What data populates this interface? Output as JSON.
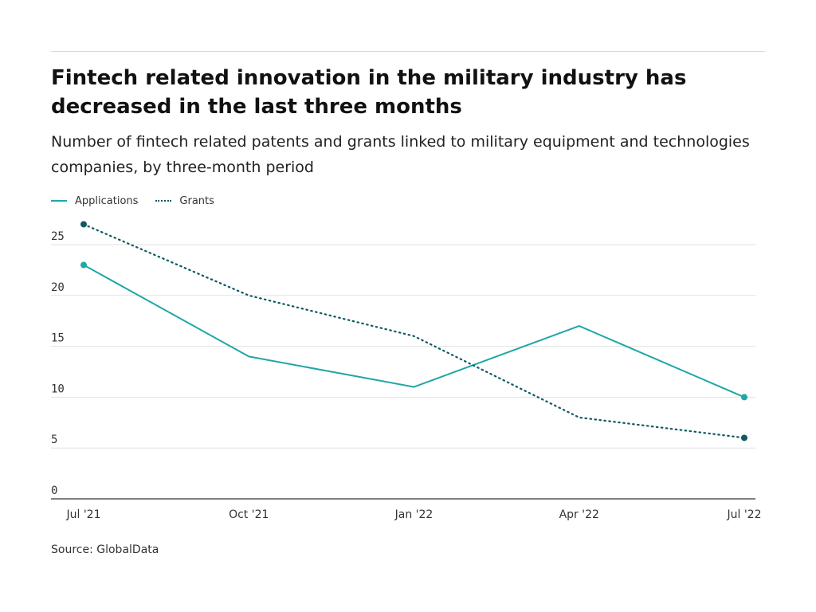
{
  "header": {
    "title": "Fintech related innovation in the military industry has decreased in the last three months",
    "subtitle": "Number of fintech related patents and grants linked to military equipment and technologies companies, by three-month period"
  },
  "footer": {
    "source": "Source: GlobalData"
  },
  "colors": {
    "applications": "#20a6a6",
    "grants": "#0e5a62",
    "grid": "#e3e3e3"
  },
  "chart_data": {
    "type": "line",
    "title": "Fintech related innovation in the military industry has decreased in the last three months",
    "subtitle": "Number of fintech related patents and grants linked to military equipment and technologies companies, by three-month period",
    "categories": [
      "Jul '21",
      "Oct '21",
      "Jan '22",
      "Apr '22",
      "Jul '22"
    ],
    "series": [
      {
        "name": "Applications",
        "style": "solid",
        "color": "#20a6a6",
        "values": [
          23,
          14,
          11,
          17,
          10
        ]
      },
      {
        "name": "Grants",
        "style": "dotted",
        "color": "#0e5a62",
        "values": [
          27,
          20,
          16,
          8,
          6
        ]
      }
    ],
    "yticks": [
      0,
      5,
      10,
      15,
      20,
      25
    ],
    "ylim": [
      0,
      27
    ],
    "xlabel": "",
    "ylabel": "",
    "grid": true,
    "legend": "top-left",
    "endpoint_markers": true
  }
}
